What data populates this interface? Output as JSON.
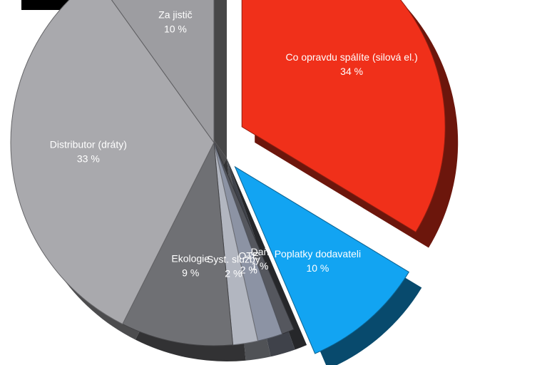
{
  "chart_data": {
    "type": "pie",
    "categories": [
      "Co opravdu spálíte (silová el.)",
      "Poplatky dodavateli",
      "Daň",
      "OTE",
      "Syst. služby",
      "Ekologie",
      "Distributor (dráty)",
      "Za jistič"
    ],
    "values": [
      34,
      10,
      1,
      2,
      2,
      9,
      33,
      10
    ],
    "value_labels": [
      "34 %",
      "10 %",
      "1 %",
      "2 %",
      "2 %",
      "9 %",
      "33 %",
      "10 %"
    ],
    "colors": [
      "#f0301a",
      "#12a4f2",
      "#55575e",
      "#8c93a4",
      "#b2b6c0",
      "#6f7074",
      "#a9a9ad",
      "#9d9da1"
    ],
    "exploded": [
      true,
      true,
      false,
      false,
      false,
      false,
      false,
      false
    ]
  }
}
